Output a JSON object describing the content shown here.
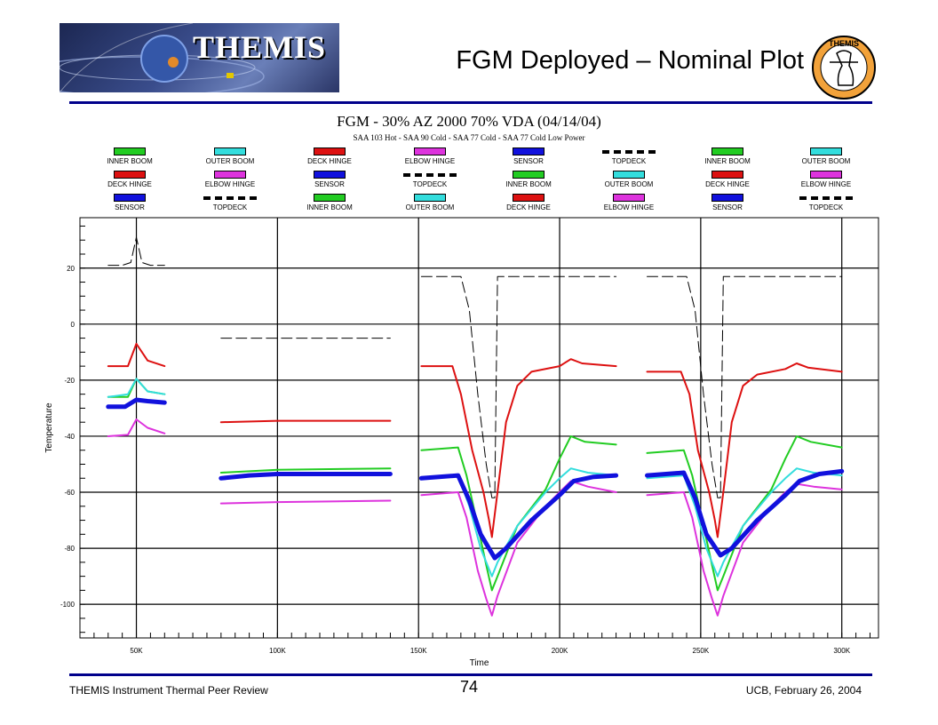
{
  "header": {
    "logo_text": "THEMIS",
    "title": "FGM Deployed  – Nominal Plot",
    "seal_text": "THEMIS"
  },
  "legend": [
    {
      "label": "INNER BOOM",
      "color": "#22cc22"
    },
    {
      "label": "OUTER BOOM",
      "color": "#33dddd"
    },
    {
      "label": "DECK HINGE",
      "color": "#dd1111"
    },
    {
      "label": "ELBOW HINGE",
      "color": "#dd33dd"
    },
    {
      "label": "SENSOR",
      "color": "#1111dd"
    },
    {
      "label": "TOPDECK",
      "color": "#000000"
    },
    {
      "label": "INNER BOOM",
      "color": "#22cc22"
    },
    {
      "label": "OUTER BOOM",
      "color": "#33dddd"
    },
    {
      "label": "DECK HINGE",
      "color": "#dd1111"
    },
    {
      "label": "ELBOW HINGE",
      "color": "#dd33dd"
    },
    {
      "label": "SENSOR",
      "color": "#1111dd"
    },
    {
      "label": "TOPDECK",
      "color": "#000000"
    },
    {
      "label": "INNER BOOM",
      "color": "#22cc22"
    },
    {
      "label": "OUTER BOOM",
      "color": "#33dddd"
    },
    {
      "label": "DECK HINGE",
      "color": "#dd1111"
    },
    {
      "label": "ELBOW HINGE",
      "color": "#dd33dd"
    },
    {
      "label": "SENSOR",
      "color": "#1111dd"
    },
    {
      "label": "TOPDECK",
      "color": "#000000"
    },
    {
      "label": "INNER BOOM",
      "color": "#22cc22"
    },
    {
      "label": "OUTER BOOM",
      "color": "#33dddd"
    },
    {
      "label": "DECK HINGE",
      "color": "#dd1111"
    },
    {
      "label": "ELBOW HINGE",
      "color": "#dd33dd"
    },
    {
      "label": "SENSOR",
      "color": "#1111dd"
    },
    {
      "label": "TOPDECK",
      "color": "#000000"
    }
  ],
  "chart_data": {
    "type": "line",
    "title": "FGM - 30% AZ 2000 70% VDA  (04/14/04)",
    "subtitle": "SAA 103 Hot - SAA 90 Cold - SAA 77 Cold - SAA 77 Cold Low Power",
    "xlabel": "Time",
    "ylabel": "Temperature",
    "xlim": [
      30000,
      313000
    ],
    "ylim": [
      -112,
      38
    ],
    "xticks": [
      50000,
      100000,
      150000,
      200000,
      250000,
      300000
    ],
    "xtick_labels": [
      "50K",
      "100K",
      "150K",
      "200K",
      "250K",
      "300K"
    ],
    "yticks": [
      20,
      0,
      -20,
      -40,
      -60,
      -80,
      -100
    ],
    "ytick_labels": [
      "20",
      "0",
      "-20",
      "-40",
      "-60",
      "-80",
      "-100"
    ],
    "grid": true,
    "series": [
      {
        "name": "INNER BOOM",
        "color": "#22cc22",
        "width": 2,
        "dash": false,
        "segments": [
          [
            [
              40000,
              -26
            ],
            [
              47000,
              -26
            ],
            [
              50000,
              -19.5
            ],
            [
              54000,
              -24
            ],
            [
              60000,
              -25
            ]
          ],
          [
            [
              80000,
              -53
            ],
            [
              100000,
              -52
            ],
            [
              140000,
              -51.5
            ]
          ],
          [
            [
              151000,
              -45
            ],
            [
              164000,
              -44
            ],
            [
              167000,
              -54
            ],
            [
              171000,
              -72
            ],
            [
              174000,
              -86
            ],
            [
              176000,
              -95
            ],
            [
              178000,
              -90
            ],
            [
              185000,
              -72
            ],
            [
              195000,
              -59
            ],
            [
              200000,
              -48
            ],
            [
              204000,
              -40
            ],
            [
              209000,
              -42
            ],
            [
              220000,
              -43
            ]
          ],
          [
            [
              231000,
              -46
            ],
            [
              244000,
              -45
            ],
            [
              247000,
              -54
            ],
            [
              251000,
              -72
            ],
            [
              254000,
              -86
            ],
            [
              256000,
              -95
            ],
            [
              258000,
              -90
            ],
            [
              265000,
              -72
            ],
            [
              275000,
              -59
            ],
            [
              280000,
              -48
            ],
            [
              284000,
              -40
            ],
            [
              289000,
              -42
            ],
            [
              300000,
              -44
            ]
          ]
        ]
      },
      {
        "name": "OUTER BOOM",
        "color": "#33dddd",
        "width": 2,
        "dash": false,
        "segments": [
          [
            [
              40000,
              -26
            ],
            [
              47000,
              -25
            ],
            [
              50000,
              -19.5
            ],
            [
              54000,
              -24
            ],
            [
              60000,
              -25
            ]
          ],
          [
            [
              80000,
              -55
            ],
            [
              100000,
              -53.5
            ],
            [
              140000,
              -53
            ]
          ],
          [
            [
              151000,
              -55
            ],
            [
              164000,
              -54
            ],
            [
              168000,
              -65
            ],
            [
              172000,
              -80
            ],
            [
              176000,
              -90
            ],
            [
              178000,
              -85
            ],
            [
              185000,
              -72
            ],
            [
              195000,
              -60
            ],
            [
              200000,
              -55
            ],
            [
              204000,
              -51.5
            ],
            [
              210000,
              -53
            ],
            [
              220000,
              -54
            ]
          ],
          [
            [
              231000,
              -55
            ],
            [
              244000,
              -54
            ],
            [
              248000,
              -65
            ],
            [
              252000,
              -80
            ],
            [
              256000,
              -90
            ],
            [
              258000,
              -85
            ],
            [
              265000,
              -72
            ],
            [
              275000,
              -60
            ],
            [
              280000,
              -55
            ],
            [
              284000,
              -51.5
            ],
            [
              290000,
              -53
            ],
            [
              300000,
              -54
            ]
          ]
        ]
      },
      {
        "name": "DECK HINGE",
        "color": "#dd1111",
        "width": 2,
        "dash": false,
        "segments": [
          [
            [
              40000,
              -15
            ],
            [
              47000,
              -15
            ],
            [
              50000,
              -7
            ],
            [
              54000,
              -13
            ],
            [
              60000,
              -15
            ]
          ],
          [
            [
              80000,
              -35
            ],
            [
              100000,
              -34.5
            ],
            [
              140000,
              -34.5
            ]
          ],
          [
            [
              151000,
              -15
            ],
            [
              162000,
              -15
            ],
            [
              165000,
              -25
            ],
            [
              169000,
              -45
            ],
            [
              173000,
              -60
            ],
            [
              175000,
              -70
            ],
            [
              176000,
              -76
            ],
            [
              178000,
              -60
            ],
            [
              181000,
              -35
            ],
            [
              185000,
              -22
            ],
            [
              190000,
              -17
            ],
            [
              200000,
              -15
            ],
            [
              204000,
              -12.5
            ],
            [
              208000,
              -14
            ],
            [
              220000,
              -15
            ]
          ],
          [
            [
              231000,
              -17
            ],
            [
              243000,
              -17
            ],
            [
              246000,
              -25
            ],
            [
              249000,
              -45
            ],
            [
              253000,
              -60
            ],
            [
              255000,
              -70
            ],
            [
              256000,
              -76
            ],
            [
              258000,
              -60
            ],
            [
              261000,
              -35
            ],
            [
              265000,
              -22
            ],
            [
              270000,
              -18
            ],
            [
              280000,
              -16
            ],
            [
              284000,
              -14
            ],
            [
              288000,
              -15.5
            ],
            [
              300000,
              -17
            ]
          ]
        ]
      },
      {
        "name": "ELBOW HINGE",
        "color": "#dd33dd",
        "width": 2,
        "dash": false,
        "segments": [
          [
            [
              40000,
              -40
            ],
            [
              47000,
              -39.5
            ],
            [
              50000,
              -34
            ],
            [
              54000,
              -37
            ],
            [
              60000,
              -39
            ]
          ],
          [
            [
              80000,
              -64
            ],
            [
              100000,
              -63.5
            ],
            [
              140000,
              -63
            ]
          ],
          [
            [
              151000,
              -61
            ],
            [
              164000,
              -60
            ],
            [
              167000,
              -69
            ],
            [
              171000,
              -88
            ],
            [
              174000,
              -98
            ],
            [
              176000,
              -104
            ],
            [
              178000,
              -97
            ],
            [
              185000,
              -78
            ],
            [
              195000,
              -65
            ],
            [
              200000,
              -60
            ],
            [
              204000,
              -56
            ],
            [
              210000,
              -58
            ],
            [
              220000,
              -60
            ]
          ],
          [
            [
              231000,
              -61
            ],
            [
              244000,
              -60
            ],
            [
              247000,
              -69
            ],
            [
              251000,
              -88
            ],
            [
              254000,
              -98
            ],
            [
              256000,
              -104
            ],
            [
              258000,
              -97
            ],
            [
              265000,
              -78
            ],
            [
              275000,
              -65
            ],
            [
              280000,
              -60
            ],
            [
              284000,
              -57
            ],
            [
              290000,
              -58
            ],
            [
              300000,
              -59
            ]
          ]
        ]
      },
      {
        "name": "SENSOR",
        "color": "#1111dd",
        "width": 5,
        "dash": false,
        "segments": [
          [
            [
              40000,
              -29.5
            ],
            [
              46000,
              -29.5
            ],
            [
              50000,
              -27
            ],
            [
              54000,
              -27.5
            ],
            [
              60000,
              -28
            ]
          ],
          [
            [
              80000,
              -55
            ],
            [
              90000,
              -54
            ],
            [
              100000,
              -53.5
            ],
            [
              140000,
              -53.5
            ]
          ],
          [
            [
              151000,
              -55
            ],
            [
              164000,
              -54
            ],
            [
              168000,
              -63
            ],
            [
              172000,
              -75
            ],
            [
              177000,
              -83.5
            ],
            [
              181000,
              -80
            ],
            [
              190000,
              -70
            ],
            [
              200000,
              -61
            ],
            [
              205000,
              -56
            ],
            [
              212000,
              -54.5
            ],
            [
              220000,
              -54
            ]
          ],
          [
            [
              231000,
              -54
            ],
            [
              244000,
              -53
            ],
            [
              248000,
              -62
            ],
            [
              252000,
              -75
            ],
            [
              257000,
              -82.5
            ],
            [
              261000,
              -80
            ],
            [
              270000,
              -70
            ],
            [
              280000,
              -61
            ],
            [
              285000,
              -56
            ],
            [
              292000,
              -53.5
            ],
            [
              300000,
              -52.5
            ]
          ]
        ]
      },
      {
        "name": "TOPDECK",
        "color": "#000000",
        "width": 1,
        "dash": true,
        "segments": [
          [
            [
              40000,
              21
            ],
            [
              45000,
              21
            ],
            [
              48000,
              22
            ],
            [
              50000,
              31
            ],
            [
              52000,
              22
            ],
            [
              55000,
              21
            ],
            [
              60000,
              21
            ]
          ],
          [
            [
              80000,
              -5
            ],
            [
              140000,
              -5
            ]
          ],
          [
            [
              151000,
              17
            ],
            [
              165000,
              17
            ],
            [
              168000,
              5
            ],
            [
              171000,
              -25
            ],
            [
              174000,
              -50
            ],
            [
              176000,
              -62
            ],
            [
              177000,
              -62
            ],
            [
              178000,
              17
            ],
            [
              220000,
              17
            ]
          ],
          [
            [
              231000,
              17
            ],
            [
              245000,
              17
            ],
            [
              248000,
              5
            ],
            [
              251000,
              -25
            ],
            [
              254000,
              -50
            ],
            [
              256000,
              -62
            ],
            [
              257000,
              -62
            ],
            [
              258000,
              17
            ],
            [
              300000,
              17
            ]
          ]
        ]
      }
    ]
  },
  "footer": {
    "left": "THEMIS Instrument Thermal Peer Review",
    "page_number": "74",
    "right": "UCB, February 26, 2004"
  }
}
